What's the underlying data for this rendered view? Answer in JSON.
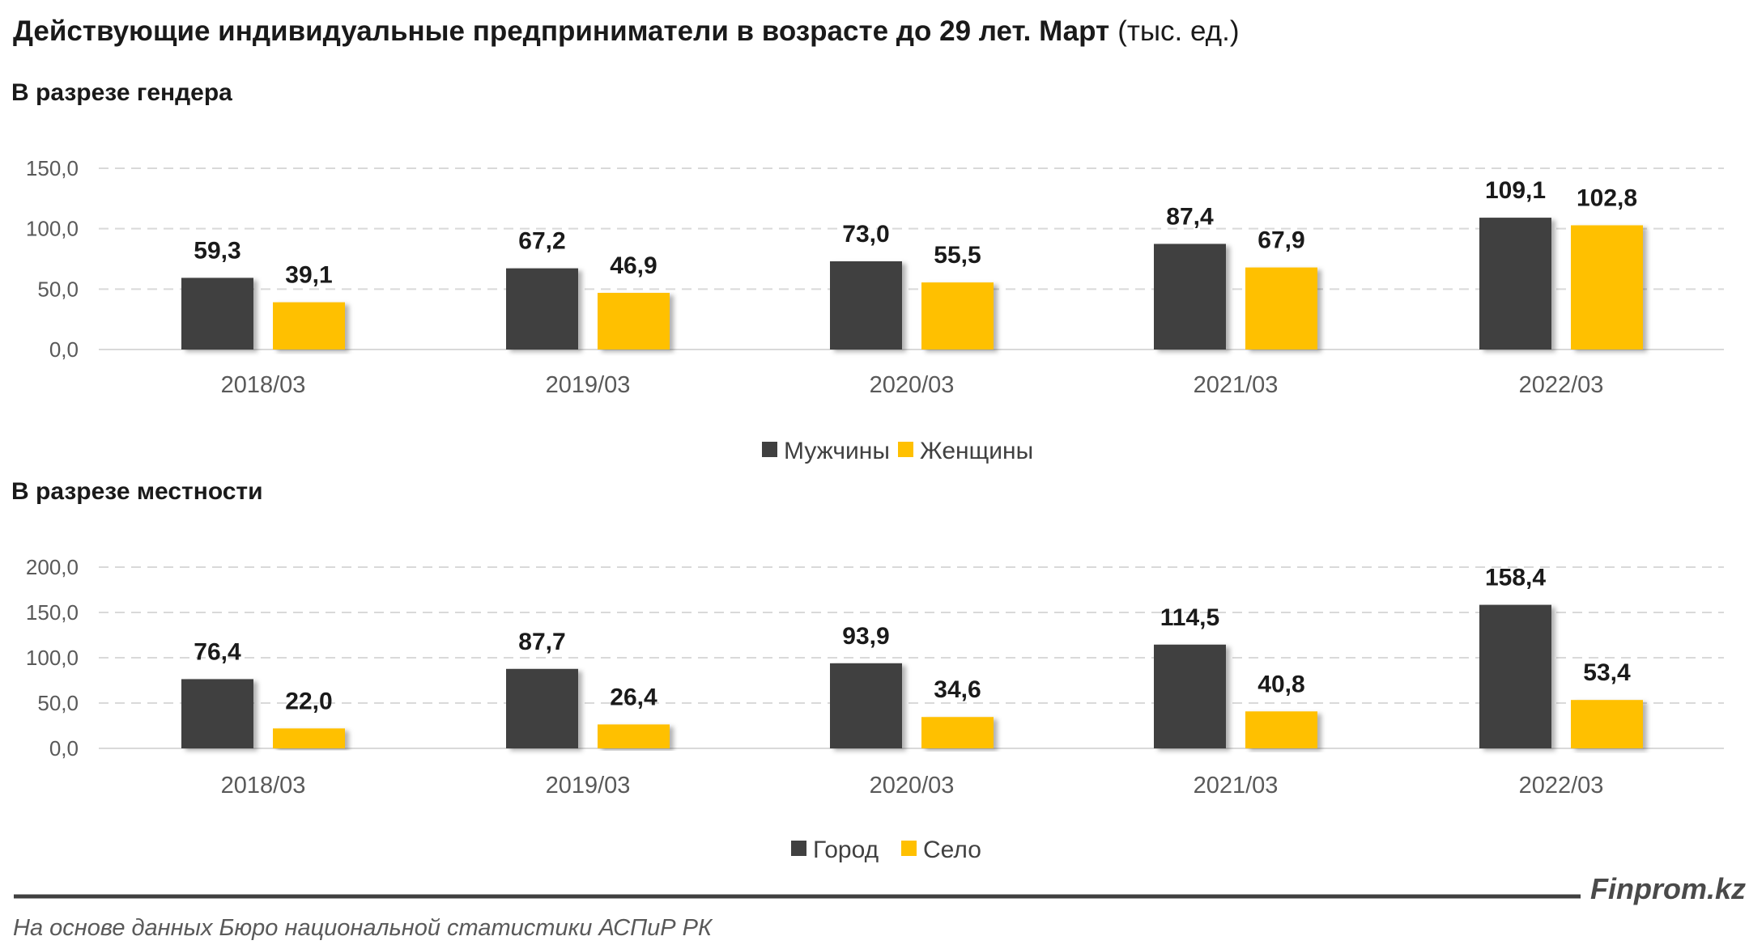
{
  "title": "Действующие индивидуальные предприниматели в возрасте до 29 лет. Март",
  "title_unit": "(тыс. ед.)",
  "logo": "Finprom.kz",
  "source": "На основе данных Бюро национальной статистики АСПиР РК",
  "chart_data": [
    {
      "type": "bar",
      "subtitle": "В разрезе гендера",
      "categories": [
        "2018/03",
        "2019/03",
        "2020/03",
        "2021/03",
        "2022/03"
      ],
      "series": [
        {
          "name": "Мужчины",
          "color": "#404040",
          "values": [
            59.3,
            67.2,
            73.0,
            87.4,
            109.1
          ],
          "labels": [
            "59,3",
            "67,2",
            "73,0",
            "87,4",
            "109,1"
          ]
        },
        {
          "name": "Женщины",
          "color": "#FFC000",
          "values": [
            39.1,
            46.9,
            55.5,
            67.9,
            102.8
          ],
          "labels": [
            "39,1",
            "46,9",
            "55,5",
            "67,9",
            "102,8"
          ]
        }
      ],
      "ylim": [
        0,
        150
      ],
      "yticks": [
        "0,0",
        "50,0",
        "100,0",
        "150,0"
      ],
      "grid": true,
      "legend": "bottom"
    },
    {
      "type": "bar",
      "subtitle": "В разрезе местности",
      "categories": [
        "2018/03",
        "2019/03",
        "2020/03",
        "2021/03",
        "2022/03"
      ],
      "series": [
        {
          "name": "Город",
          "color": "#404040",
          "values": [
            76.4,
            87.7,
            93.9,
            114.5,
            158.4
          ],
          "labels": [
            "76,4",
            "87,7",
            "93,9",
            "114,5",
            "158,4"
          ]
        },
        {
          "name": "Село",
          "color": "#FFC000",
          "values": [
            22.0,
            26.4,
            34.6,
            40.8,
            53.4
          ],
          "labels": [
            "22,0",
            "26,4",
            "34,6",
            "40,8",
            "53,4"
          ]
        }
      ],
      "ylim": [
        0,
        200
      ],
      "yticks": [
        "0,0",
        "50,0",
        "100,0",
        "150,0",
        "200,0"
      ],
      "grid": true,
      "legend": "bottom"
    }
  ]
}
